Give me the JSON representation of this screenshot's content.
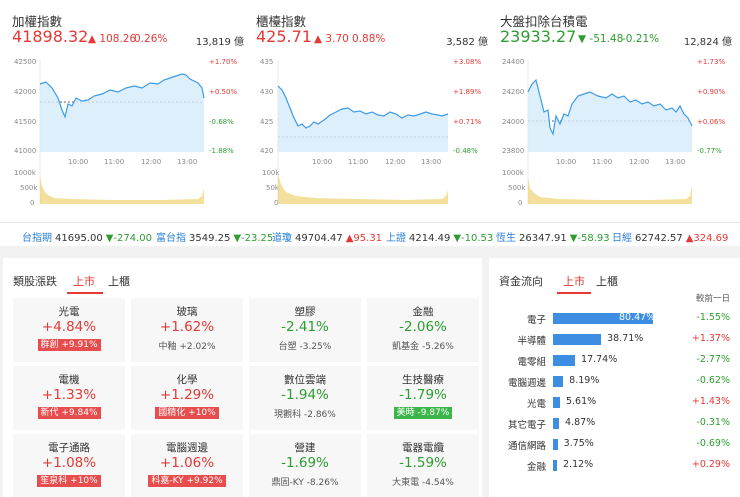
{
  "cards": [
    {
      "name": "加權指數",
      "price": "41898.32",
      "change": "108.26",
      "pct": "0.26%",
      "direction": "up",
      "volume": "13,819 億",
      "y_ticks": [
        "42500",
        "42000",
        "41500",
        "41000"
      ],
      "right_ticks": [
        "+1.70%",
        "+0.50%",
        "-0.68%",
        "-1.88%"
      ],
      "times": [
        "10:00",
        "11:00",
        "12:00",
        "13:00"
      ],
      "vol_ticks": [
        "1000k",
        "500k",
        "0"
      ]
    },
    {
      "name": "櫃檯指數",
      "price": "425.71",
      "change": "3.70",
      "pct": "0.88%",
      "direction": "up",
      "volume": "3,582 億",
      "y_ticks": [
        "435",
        "430",
        "425",
        "420"
      ],
      "right_ticks": [
        "+3.08%",
        "+1.89%",
        "+0.71%",
        "-0.48%"
      ],
      "times": [
        "10:00",
        "11:00",
        "12:00",
        "13:00"
      ],
      "vol_ticks": [
        "100k",
        "50k",
        "0"
      ]
    },
    {
      "name": "大盤扣除台積電",
      "price": "23933.27",
      "change": "-51.48",
      "pct": "-0.21%",
      "direction": "down",
      "volume": "12,824 億",
      "y_ticks": [
        "24400",
        "24200",
        "24000",
        "23800"
      ],
      "right_ticks": [
        "+1.73%",
        "+0.90%",
        "+0.06%",
        "-0.77%"
      ],
      "times": [
        "10:00",
        "11:00",
        "12:00",
        "13:00"
      ],
      "vol_ticks": [
        "1000k",
        "500k",
        "0"
      ]
    }
  ],
  "ticker": [
    {
      "label": "台指期",
      "value": "41695.00",
      "change": "▼-274.00",
      "direction": "down"
    },
    {
      "label": "富台指",
      "value": "3549.25",
      "change": "▼-23.25",
      "direction": "down"
    },
    {
      "label": "道瓊",
      "value": "49704.47",
      "change": "▲95.31",
      "direction": "up"
    },
    {
      "label": "上證",
      "value": "4214.49",
      "change": "▼-10.53",
      "direction": "down"
    },
    {
      "label": "恆生",
      "value": "26347.91",
      "change": "▼-58.93",
      "direction": "down"
    },
    {
      "label": "日經",
      "value": "62742.57",
      "change": "▲324.69",
      "direction": "up"
    }
  ],
  "sectors": {
    "title": "類股漲跌",
    "tabs": [
      "上市",
      "上櫃"
    ],
    "items": [
      {
        "name": "光電",
        "pct": "+4.84%",
        "dir": "up",
        "stock": "群創 +9.91%",
        "stock_style": "badge-up"
      },
      {
        "name": "玻璃",
        "pct": "+1.62%",
        "dir": "up",
        "stock": "中釉 +2.02%",
        "stock_style": "plain"
      },
      {
        "name": "塑膠",
        "pct": "-2.41%",
        "dir": "down",
        "stock": "台塑 -3.25%",
        "stock_style": "plain"
      },
      {
        "name": "金融",
        "pct": "-2.06%",
        "dir": "down",
        "stock": "凱基金 -5.26%",
        "stock_style": "plain"
      },
      {
        "name": "電機",
        "pct": "+1.33%",
        "dir": "up",
        "stock": "新代 +9.84%",
        "stock_style": "badge-up"
      },
      {
        "name": "化學",
        "pct": "+1.29%",
        "dir": "up",
        "stock": "國精化 +10%",
        "stock_style": "badge-up"
      },
      {
        "name": "數位雲端",
        "pct": "-1.94%",
        "dir": "down",
        "stock": "現觀科 -2.86%",
        "stock_style": "plain"
      },
      {
        "name": "生技醫療",
        "pct": "-1.79%",
        "dir": "down",
        "stock": "美時 -9.87%",
        "stock_style": "badge-down"
      },
      {
        "name": "電子通路",
        "pct": "+1.08%",
        "dir": "up",
        "stock": "笙泉科 +10%",
        "stock_style": "badge-up"
      },
      {
        "name": "電腦週邊",
        "pct": "+1.06%",
        "dir": "up",
        "stock": "科嘉-KY +9.92%",
        "stock_style": "badge-up"
      },
      {
        "name": "營建",
        "pct": "-1.69%",
        "dir": "down",
        "stock": "鼎固-KY -8.26%",
        "stock_style": "plain"
      },
      {
        "name": "電器電纜",
        "pct": "-1.59%",
        "dir": "down",
        "stock": "大東電 -4.54%",
        "stock_style": "plain"
      }
    ]
  },
  "fund_flow": {
    "title": "資金流向",
    "tabs": [
      "上市",
      "上櫃"
    ],
    "column_header": "較前一日",
    "rows": [
      {
        "label": "電子",
        "share": 80.47,
        "value": "80.47%",
        "change": "-1.55%",
        "dir": "down"
      },
      {
        "label": "半導體",
        "share": 38.71,
        "value": "38.71%",
        "change": "+1.37%",
        "dir": "up"
      },
      {
        "label": "電零組",
        "share": 17.74,
        "value": "17.74%",
        "change": "-2.77%",
        "dir": "down"
      },
      {
        "label": "電腦週邊",
        "share": 8.19,
        "value": "8.19%",
        "change": "-0.62%",
        "dir": "down"
      },
      {
        "label": "光電",
        "share": 5.61,
        "value": "5.61%",
        "change": "+1.43%",
        "dir": "up"
      },
      {
        "label": "其它電子",
        "share": 4.87,
        "value": "4.87%",
        "change": "-0.31%",
        "dir": "down"
      },
      {
        "label": "通信網路",
        "share": 3.75,
        "value": "3.75%",
        "change": "-0.69%",
        "dir": "down"
      },
      {
        "label": "金融",
        "share": 2.12,
        "value": "2.12%",
        "change": "+0.29%",
        "dir": "up"
      }
    ]
  },
  "colors": {
    "up": "#e53935",
    "down": "#2e9c31",
    "accent": "#3d8de3",
    "volume": "#e8c23a"
  }
}
